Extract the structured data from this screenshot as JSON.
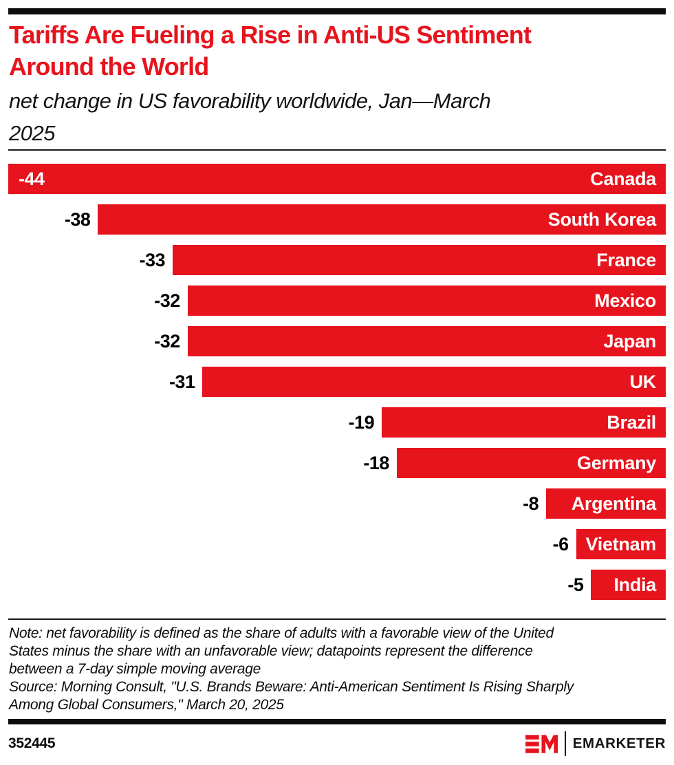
{
  "header": {
    "title": "Tariffs Are Fueling a Rise in Anti-US Sentiment Around the World",
    "title_lines": [
      "Tariffs Are Fueling a Rise in Anti-US Sentiment",
      "Around the World"
    ],
    "subtitle": "net change in US favorability worldwide, Jan—March 2025",
    "subtitle_lines": [
      "net change in US favorability worldwide, Jan—March",
      "2025"
    ]
  },
  "chart_data": {
    "type": "bar",
    "orientation": "horizontal",
    "bars_aligned": "right",
    "title": "Tariffs Are Fueling a Rise in Anti-US Sentiment Around the World",
    "subtitle": "net change in US favorability worldwide, Jan—March 2025",
    "categories": [
      "Canada",
      "South Korea",
      "France",
      "Mexico",
      "Japan",
      "UK",
      "Brazil",
      "Germany",
      "Argentina",
      "Vietnam",
      "India"
    ],
    "values": [
      -44,
      -38,
      -33,
      -32,
      -32,
      -31,
      -19,
      -18,
      -8,
      -6,
      -5
    ],
    "value_labels": [
      "-44",
      "-38",
      "-33",
      "-32",
      "-32",
      "-31",
      "-19",
      "-18",
      "-8",
      "-6",
      "-5"
    ],
    "xlabel": "",
    "ylabel": "",
    "xlim": [
      -44,
      0
    ],
    "grid": false,
    "legend": false,
    "bar_color": "#E7131D"
  },
  "footer": {
    "note": "Note: net favorability is defined as the share of adults with a favorable view of the United States minus the share with an unfavorable view; datapoints represent the difference between a 7-day simple moving average",
    "note_lines": [
      "Note: net favorability is defined as the share of adults with a favorable view of the United",
      "States minus the share with an unfavorable view; datapoints represent the difference",
      "between a 7-day simple moving average"
    ],
    "source": "Source: Morning Consult, \"U.S. Brands Beware: Anti-American Sentiment Is Rising Sharply Among Global Consumers,\" March 20, 2025",
    "source_lines": [
      "Source: Morning Consult, \"U.S. Brands Beware: Anti-American Sentiment Is Rising Sharply",
      "Among Global Consumers,\" March 20, 2025"
    ],
    "chart_id": "352445",
    "brand": "EMARKETER"
  },
  "colors": {
    "accent_red": "#E7131D",
    "rule_black": "#0d0d0d"
  }
}
